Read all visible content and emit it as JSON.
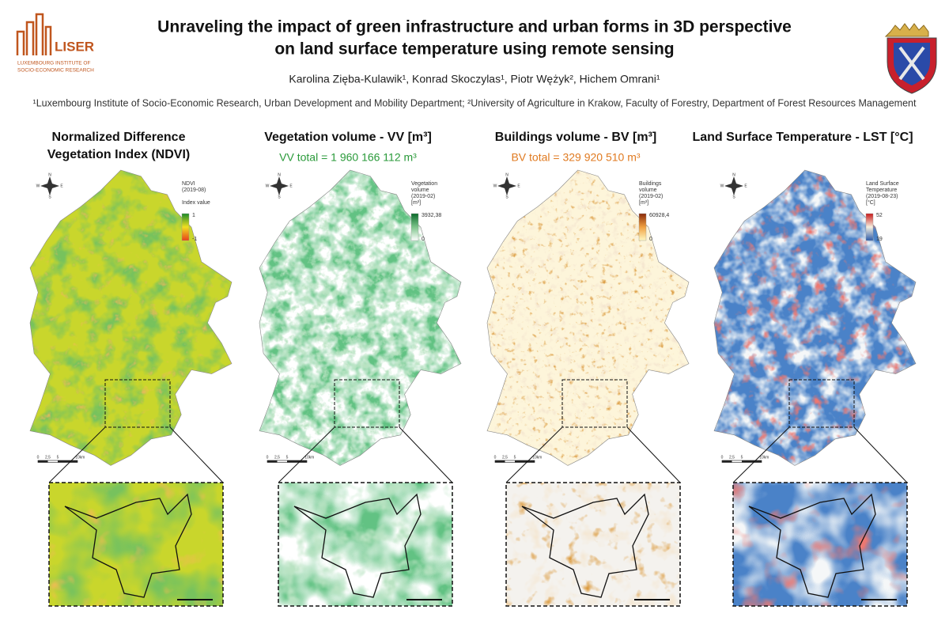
{
  "header": {
    "title_lines": [
      "Unraveling the impact of green infrastructure and urban forms in 3D perspective",
      "on land surface temperature using remote sensing"
    ],
    "authors": "Karolina Zięba-Kulawik¹,  Konrad Skoczylas¹, Piotr Wężyk², Hichem Omrani¹",
    "affiliations": "¹Luxembourg Institute of Socio-Economic Research, Urban Development and Mobility Department; ²University of Agriculture in Krakow, Faculty of Forestry, Department of Forest Resources Management",
    "logo": {
      "name": "LISER",
      "lines": [
        "LUXEMBOURG INSTITUTE OF",
        "SOCIO-ECONOMIC RESEARCH"
      ]
    }
  },
  "compass_labels": [
    "N",
    "S",
    "W",
    "E"
  ],
  "scale_labels": [
    "0",
    "2,5",
    "5",
    "10",
    "km"
  ],
  "panels": [
    {
      "title_lines": [
        "Normalized Difference",
        "Vegetation Index (NDVI)"
      ],
      "legend": {
        "lines": [
          "NDVI",
          "(2019-08)",
          "",
          "Index value"
        ],
        "max": "1",
        "min": "-1"
      }
    },
    {
      "title_lines": [
        "Vegetation volume - VV [m³]"
      ],
      "subtitle": "VV total = 1 960 166 112 m³",
      "legend": {
        "lines": [
          "Vegetation",
          "volume",
          "(2019-02)",
          "[m³]"
        ],
        "max": "3932,38",
        "min": "0"
      }
    },
    {
      "title_lines": [
        "Buildings volume - BV [m³]"
      ],
      "subtitle": "BV total = 329 920 510 m³",
      "legend": {
        "lines": [
          "Buildings",
          "volume",
          "(2019-02)",
          "[m³]"
        ],
        "max": "60928,4",
        "min": "0"
      }
    },
    {
      "title_lines": [
        "Land Surface Temperature - LST [°C]"
      ],
      "legend": {
        "lines": [
          "Land Surface",
          "Temperature",
          "(2019-08-23)",
          "[°C]"
        ],
        "max": "52",
        "min": "19"
      }
    }
  ]
}
